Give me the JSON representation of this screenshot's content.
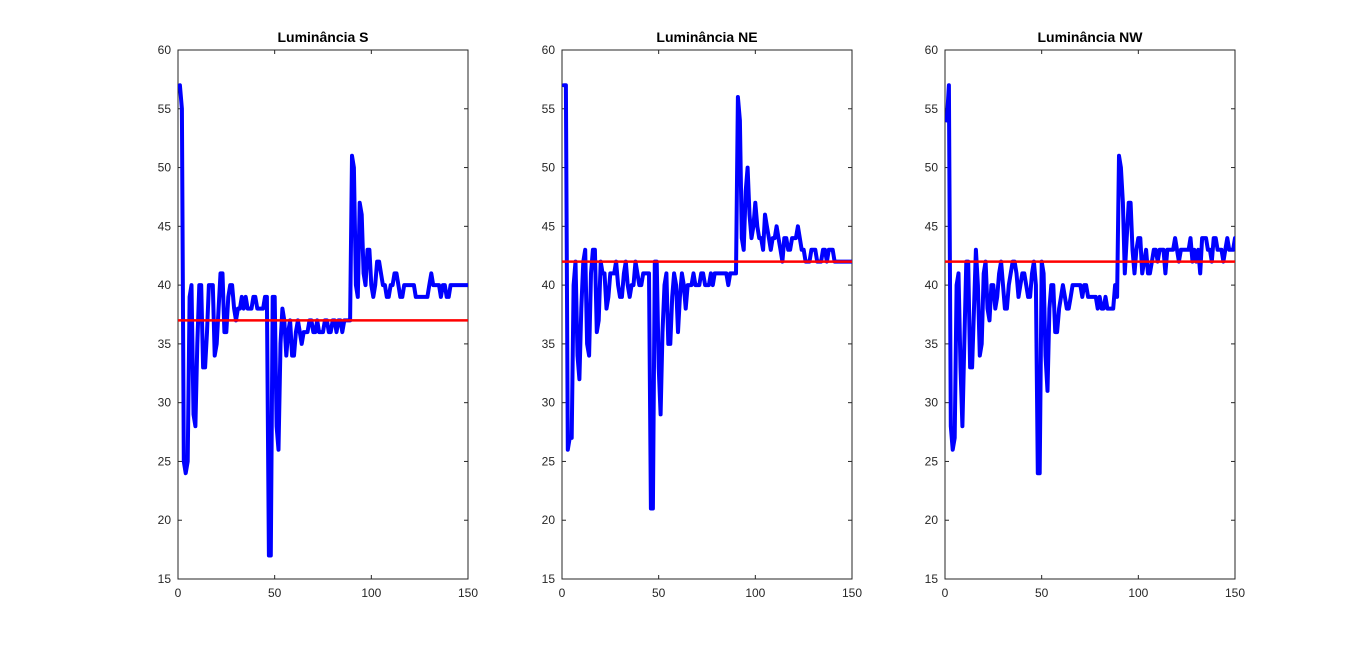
{
  "chart_data": [
    {
      "type": "line",
      "title": "Luminância S",
      "xlabel": "",
      "ylabel": "",
      "xlim": [
        0,
        150
      ],
      "ylim": [
        15,
        60
      ],
      "xticks": [
        0,
        50,
        100,
        150
      ],
      "yticks": [
        15,
        20,
        25,
        30,
        35,
        40,
        45,
        50,
        55,
        60
      ],
      "grid": false,
      "series": [
        {
          "color": "#0000ff",
          "x": [
            1,
            2,
            3,
            4,
            5,
            6,
            7,
            8,
            9,
            10,
            11,
            12,
            13,
            14,
            15,
            16,
            17,
            18,
            19,
            20,
            21,
            22,
            23,
            24,
            25,
            26,
            27,
            28,
            29,
            30,
            31,
            32,
            33,
            34,
            35,
            36,
            37,
            38,
            39,
            40,
            41,
            42,
            43,
            44,
            45,
            46,
            47,
            48,
            49,
            50,
            51,
            52,
            53,
            54,
            55,
            56,
            57,
            58,
            59,
            60,
            61,
            62,
            63,
            64,
            65,
            66,
            67,
            68,
            69,
            70,
            71,
            72,
            73,
            74,
            75,
            76,
            77,
            78,
            79,
            80,
            81,
            82,
            83,
            84,
            85,
            86,
            87,
            88,
            89,
            90,
            91,
            92,
            93,
            94,
            95,
            96,
            97,
            98,
            99,
            100,
            101,
            102,
            103,
            104,
            105,
            106,
            107,
            108,
            109,
            110,
            111,
            112,
            113,
            114,
            115,
            116,
            117,
            118,
            119,
            120,
            121,
            122,
            123,
            124,
            125,
            126,
            127,
            128,
            129,
            130,
            131,
            132,
            133,
            134,
            135,
            136,
            137,
            138,
            139,
            140,
            141,
            142,
            143,
            144,
            145,
            146,
            147,
            148,
            149,
            150
          ],
          "y": [
            57,
            55,
            25,
            24,
            25,
            39,
            40,
            29,
            28,
            35,
            40,
            40,
            33,
            33,
            36,
            40,
            40,
            40,
            34,
            35,
            38,
            41,
            41,
            36,
            36,
            39,
            40,
            40,
            38,
            37,
            38,
            38,
            39,
            38,
            39,
            38,
            38,
            38,
            39,
            39,
            38,
            38,
            38,
            38,
            39,
            39,
            17,
            17,
            39,
            39,
            28,
            26,
            35,
            38,
            37,
            34,
            36,
            37,
            34,
            34,
            36,
            37,
            36,
            35,
            36,
            36,
            36,
            37,
            37,
            36,
            36,
            37,
            36,
            36,
            36,
            37,
            37,
            36,
            36,
            37,
            37,
            36,
            37,
            37,
            36,
            37,
            37,
            37,
            37,
            51,
            50,
            40,
            39,
            47,
            46,
            41,
            40,
            43,
            43,
            40,
            39,
            40,
            42,
            42,
            41,
            40,
            40,
            39,
            39,
            40,
            40,
            41,
            41,
            40,
            39,
            39,
            40,
            40,
            40,
            40,
            40,
            40,
            39,
            39,
            39,
            39,
            39,
            39,
            39,
            40,
            41,
            40,
            40,
            40,
            40,
            39,
            40,
            40,
            39,
            39,
            40,
            40,
            40,
            40,
            40,
            40,
            40,
            40,
            40,
            40
          ],
          "width": 4
        },
        {
          "color": "#ff0000",
          "x": [
            0,
            150
          ],
          "y": [
            37,
            37
          ],
          "width": 2.5
        }
      ]
    },
    {
      "type": "line",
      "title": "Luminância NE",
      "xlabel": "",
      "ylabel": "",
      "xlim": [
        0,
        150
      ],
      "ylim": [
        15,
        60
      ],
      "xticks": [
        0,
        50,
        100,
        150
      ],
      "yticks": [
        15,
        20,
        25,
        30,
        35,
        40,
        45,
        50,
        55,
        60
      ],
      "grid": false,
      "series": [
        {
          "color": "#0000ff",
          "x": [
            1,
            2,
            3,
            4,
            5,
            6,
            7,
            8,
            9,
            10,
            11,
            12,
            13,
            14,
            15,
            16,
            17,
            18,
            19,
            20,
            21,
            22,
            23,
            24,
            25,
            26,
            27,
            28,
            29,
            30,
            31,
            32,
            33,
            34,
            35,
            36,
            37,
            38,
            39,
            40,
            41,
            42,
            43,
            44,
            45,
            46,
            47,
            48,
            49,
            50,
            51,
            52,
            53,
            54,
            55,
            56,
            57,
            58,
            59,
            60,
            61,
            62,
            63,
            64,
            65,
            66,
            67,
            68,
            69,
            70,
            71,
            72,
            73,
            74,
            75,
            76,
            77,
            78,
            79,
            80,
            81,
            82,
            83,
            84,
            85,
            86,
            87,
            88,
            89,
            90,
            91,
            92,
            93,
            94,
            95,
            96,
            97,
            98,
            99,
            100,
            101,
            102,
            103,
            104,
            105,
            106,
            107,
            108,
            109,
            110,
            111,
            112,
            113,
            114,
            115,
            116,
            117,
            118,
            119,
            120,
            121,
            122,
            123,
            124,
            125,
            126,
            127,
            128,
            129,
            130,
            131,
            132,
            133,
            134,
            135,
            136,
            137,
            138,
            139,
            140,
            141,
            142,
            143,
            144,
            145,
            146,
            147,
            148,
            149,
            150
          ],
          "y": [
            57,
            57,
            26,
            27,
            27,
            40,
            42,
            34,
            32,
            38,
            42,
            43,
            35,
            34,
            41,
            43,
            43,
            36,
            37,
            42,
            41,
            41,
            38,
            39,
            41,
            41,
            41,
            42,
            40,
            39,
            39,
            41,
            42,
            40,
            39,
            40,
            40,
            42,
            41,
            40,
            40,
            41,
            41,
            41,
            41,
            21,
            21,
            42,
            42,
            33,
            29,
            36,
            40,
            41,
            35,
            35,
            39,
            41,
            40,
            36,
            39,
            41,
            40,
            38,
            40,
            40,
            40,
            41,
            40,
            40,
            40,
            41,
            41,
            40,
            40,
            40,
            41,
            40,
            41,
            41,
            41,
            41,
            41,
            41,
            41,
            40,
            41,
            41,
            41,
            41,
            56,
            54,
            44,
            43,
            48,
            50,
            46,
            44,
            45,
            47,
            45,
            44,
            44,
            43,
            46,
            45,
            44,
            43,
            44,
            44,
            45,
            44,
            43,
            42,
            44,
            44,
            43,
            43,
            44,
            44,
            44,
            45,
            44,
            43,
            43,
            42,
            42,
            42,
            43,
            43,
            43,
            42,
            42,
            42,
            43,
            43,
            42,
            43,
            43,
            43,
            42,
            42,
            42,
            42,
            42,
            42,
            42,
            42,
            42,
            42
          ],
          "width": 4
        },
        {
          "color": "#ff0000",
          "x": [
            0,
            150
          ],
          "y": [
            42,
            42
          ],
          "width": 2.5
        }
      ]
    },
    {
      "type": "line",
      "title": "Luminância NW",
      "xlabel": "",
      "ylabel": "",
      "xlim": [
        0,
        150
      ],
      "ylim": [
        15,
        60
      ],
      "xticks": [
        0,
        50,
        100,
        150
      ],
      "yticks": [
        15,
        20,
        25,
        30,
        35,
        40,
        45,
        50,
        55,
        60
      ],
      "grid": false,
      "series": [
        {
          "color": "#0000ff",
          "x": [
            1,
            2,
            3,
            4,
            5,
            6,
            7,
            8,
            9,
            10,
            11,
            12,
            13,
            14,
            15,
            16,
            17,
            18,
            19,
            20,
            21,
            22,
            23,
            24,
            25,
            26,
            27,
            28,
            29,
            30,
            31,
            32,
            33,
            34,
            35,
            36,
            37,
            38,
            39,
            40,
            41,
            42,
            43,
            44,
            45,
            46,
            47,
            48,
            49,
            50,
            51,
            52,
            53,
            54,
            55,
            56,
            57,
            58,
            59,
            60,
            61,
            62,
            63,
            64,
            65,
            66,
            67,
            68,
            69,
            70,
            71,
            72,
            73,
            74,
            75,
            76,
            77,
            78,
            79,
            80,
            81,
            82,
            83,
            84,
            85,
            86,
            87,
            88,
            89,
            90,
            91,
            92,
            93,
            94,
            95,
            96,
            97,
            98,
            99,
            100,
            101,
            102,
            103,
            104,
            105,
            106,
            107,
            108,
            109,
            110,
            111,
            112,
            113,
            114,
            115,
            116,
            117,
            118,
            119,
            120,
            121,
            122,
            123,
            124,
            125,
            126,
            127,
            128,
            129,
            130,
            131,
            132,
            133,
            134,
            135,
            136,
            137,
            138,
            139,
            140,
            141,
            142,
            143,
            144,
            145,
            146,
            147,
            148,
            149,
            150
          ],
          "y": [
            54,
            57,
            28,
            26,
            27,
            40,
            41,
            33,
            28,
            35,
            42,
            42,
            33,
            33,
            38,
            43,
            40,
            34,
            35,
            41,
            42,
            38,
            37,
            40,
            40,
            38,
            39,
            41,
            42,
            40,
            38,
            38,
            40,
            41,
            42,
            42,
            41,
            39,
            40,
            41,
            41,
            40,
            39,
            39,
            41,
            42,
            40,
            24,
            24,
            42,
            41,
            34,
            31,
            38,
            40,
            40,
            36,
            36,
            38,
            39,
            40,
            39,
            38,
            38,
            39,
            40,
            40,
            40,
            40,
            40,
            39,
            40,
            40,
            39,
            39,
            39,
            39,
            39,
            38,
            39,
            38,
            38,
            39,
            38,
            38,
            38,
            38,
            40,
            39,
            51,
            50,
            47,
            41,
            44,
            47,
            47,
            43,
            41,
            43,
            44,
            44,
            41,
            42,
            43,
            41,
            41,
            42,
            43,
            43,
            42,
            43,
            43,
            43,
            41,
            43,
            43,
            43,
            43,
            44,
            43,
            42,
            43,
            43,
            43,
            43,
            43,
            44,
            42,
            43,
            42,
            43,
            41,
            44,
            44,
            44,
            43,
            43,
            42,
            44,
            44,
            43,
            43,
            43,
            42,
            43,
            44,
            43,
            43,
            43,
            44
          ],
          "width": 4
        },
        {
          "color": "#ff0000",
          "x": [
            0,
            150
          ],
          "y": [
            42,
            42
          ],
          "width": 2.5
        }
      ]
    }
  ]
}
